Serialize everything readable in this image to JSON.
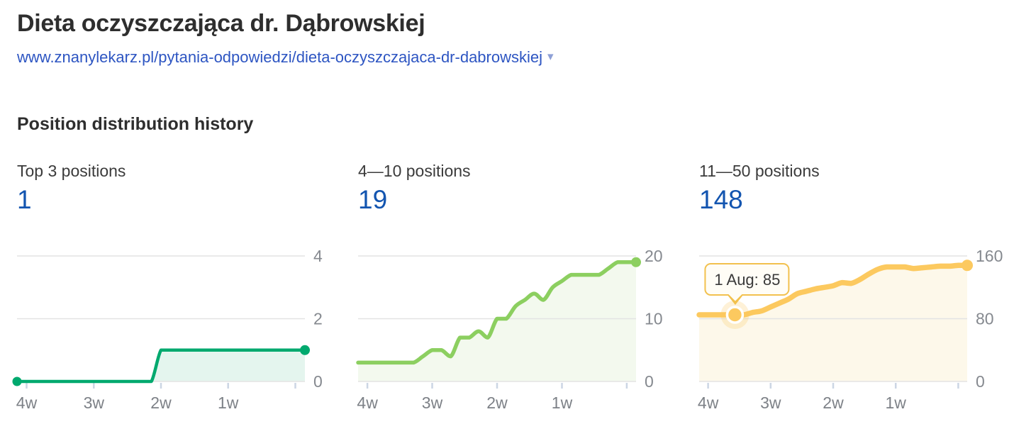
{
  "header": {
    "title": "Dieta oczyszczająca dr. Dąbrowskiej",
    "url": "www.znanylekarz.pl/pytania-odpowiedzi/dieta-oczyszczajaca-dr-dabrowskiej",
    "url_caret": "▾"
  },
  "section": {
    "title": "Position distribution history"
  },
  "colors": {
    "value_blue": "#1355b0",
    "link_blue": "#2d55c2",
    "caret_blue": "#8ea0d6",
    "heading_text": "#2e2e2e",
    "axis_text": "#85898f",
    "x_axis_text": "#7d8187",
    "grid_line": "#e3e3e3",
    "tick_mark": "#ccd6e4"
  },
  "chart_data": [
    {
      "type": "area",
      "title": "Top 3 positions",
      "current_value": "1",
      "x_tick_labels": [
        "4w",
        "3w",
        "2w",
        "1w",
        ""
      ],
      "x_tick_indices": [
        1,
        8,
        15,
        22,
        29
      ],
      "yticks": [
        0,
        2,
        4
      ],
      "ylim": [
        0,
        4
      ],
      "values": [
        0,
        0,
        0,
        0,
        0,
        0,
        0,
        0,
        0,
        0,
        0,
        0,
        0,
        0,
        0,
        1,
        1,
        1,
        1,
        1,
        1,
        1,
        1,
        1,
        1,
        1,
        1,
        1,
        1,
        1,
        1
      ],
      "line_color": "#00a96e",
      "fill_color": "#e4f5ee",
      "start_dot": true,
      "legend": "none",
      "grid": "horizontal"
    },
    {
      "type": "area",
      "title": "4—10 positions",
      "current_value": "19",
      "x_tick_labels": [
        "4w",
        "3w",
        "2w",
        "1w",
        ""
      ],
      "x_tick_indices": [
        1,
        8,
        15,
        22,
        29
      ],
      "yticks": [
        0,
        10,
        20
      ],
      "ylim": [
        0,
        20
      ],
      "values": [
        3,
        3,
        3,
        3,
        3,
        3,
        3,
        4,
        5,
        5,
        4,
        7,
        7,
        8,
        7,
        10,
        10,
        12,
        13,
        14,
        13,
        15,
        16,
        17,
        17,
        17,
        17,
        18,
        19,
        19,
        19
      ],
      "line_color": "#8ccf60",
      "fill_color": "#f3f9ee",
      "start_dot": false,
      "legend": "none",
      "grid": "horizontal"
    },
    {
      "type": "area",
      "title": "11—50 positions",
      "current_value": "148",
      "x_tick_labels": [
        "4w",
        "3w",
        "2w",
        "1w",
        ""
      ],
      "x_tick_indices": [
        1,
        8,
        15,
        22,
        29
      ],
      "yticks": [
        0,
        80,
        160
      ],
      "ylim": [
        0,
        160
      ],
      "values": [
        85,
        85,
        85,
        85,
        85,
        85,
        88,
        90,
        95,
        100,
        105,
        112,
        115,
        118,
        120,
        122,
        126,
        125,
        130,
        137,
        143,
        146,
        146,
        146,
        144,
        145,
        146,
        147,
        147,
        148,
        148
      ],
      "line_color": "#fcc95f",
      "fill_color": "#fdf8ea",
      "start_dot": false,
      "legend": "none",
      "grid": "horizontal",
      "tooltip": {
        "point_index": 4,
        "label": "1 Aug: 85",
        "border_color": "#f2c14e",
        "bg_color": "#fffdf6",
        "text_color": "#3a3a3a"
      }
    }
  ]
}
